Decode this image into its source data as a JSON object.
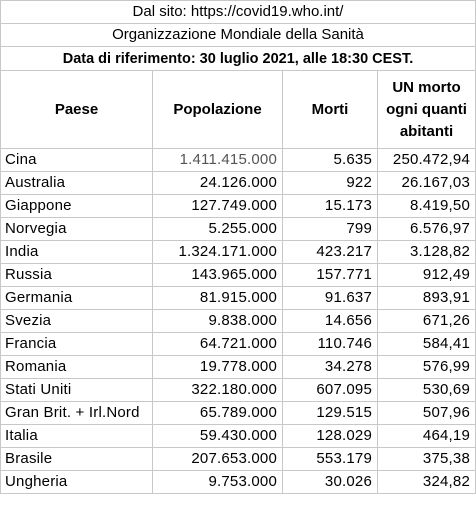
{
  "banner": {
    "source": "Dal sito: https://covid19.who.int/",
    "organization": "Organizzazione Mondiale della Sanità",
    "reference": "Data di riferimento: 30 luglio 2021, alle 18:30 CEST."
  },
  "columns": {
    "country": "Paese",
    "population": "Popolazione",
    "deaths": "Morti",
    "ratio_line1": "UN morto",
    "ratio_line2": "ogni quanti",
    "ratio_line3": "abitanti"
  },
  "rows": [
    {
      "country": "Cina",
      "population": "1.411.415.000",
      "deaths": "5.635",
      "ratio": "250.472,94"
    },
    {
      "country": "Australia",
      "population": "24.126.000",
      "deaths": "922",
      "ratio": "26.167,03"
    },
    {
      "country": "Giappone",
      "population": "127.749.000",
      "deaths": "15.173",
      "ratio": "8.419,50"
    },
    {
      "country": "Norvegia",
      "population": "5.255.000",
      "deaths": "799",
      "ratio": "6.576,97"
    },
    {
      "country": "India",
      "population": "1.324.171.000",
      "deaths": "423.217",
      "ratio": "3.128,82"
    },
    {
      "country": "Russia",
      "population": "143.965.000",
      "deaths": "157.771",
      "ratio": "912,49"
    },
    {
      "country": "Germania",
      "population": "81.915.000",
      "deaths": "91.637",
      "ratio": "893,91"
    },
    {
      "country": "Svezia",
      "population": "9.838.000",
      "deaths": "14.656",
      "ratio": "671,26"
    },
    {
      "country": "Francia",
      "population": "64.721.000",
      "deaths": "110.746",
      "ratio": "584,41"
    },
    {
      "country": "Romania",
      "population": "19.778.000",
      "deaths": "34.278",
      "ratio": "576,99"
    },
    {
      "country": "Stati Uniti",
      "population": "322.180.000",
      "deaths": "607.095",
      "ratio": "530,69"
    },
    {
      "country": "Gran Brit. + Irl.Nord",
      "population": "65.789.000",
      "deaths": "129.515",
      "ratio": "507,96"
    },
    {
      "country": "Italia",
      "population": "59.430.000",
      "deaths": "128.029",
      "ratio": "464,19"
    },
    {
      "country": "Brasile",
      "population": "207.653.000",
      "deaths": "553.179",
      "ratio": "375,38"
    },
    {
      "country": "Ungheria",
      "population": "9.753.000",
      "deaths": "30.026",
      "ratio": "324,82"
    }
  ]
}
